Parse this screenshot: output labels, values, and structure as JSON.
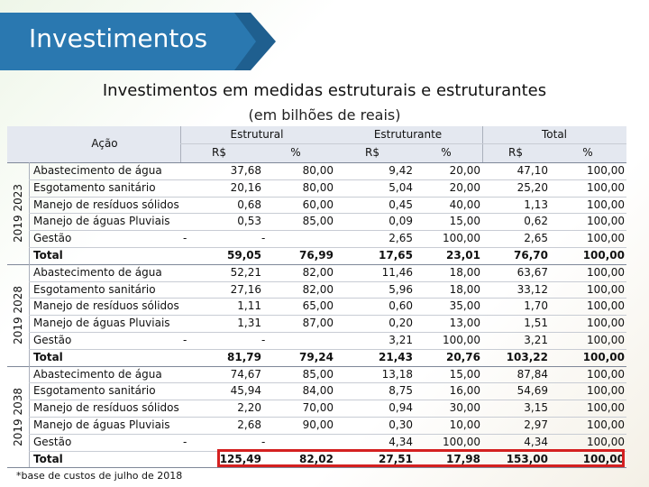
{
  "banner": "Investimentos",
  "heading": "Investimentos em medidas estruturais e estruturantes",
  "subheading": "(em bilhões de reais)",
  "table": {
    "header": {
      "action": "Ação",
      "groups": [
        "Estrutural",
        "Estruturante",
        "Total"
      ],
      "subheaders": [
        "R$",
        "%",
        "R$",
        "%",
        "R$",
        "%"
      ]
    },
    "sections": [
      {
        "label": "2019 2023",
        "rows": [
          [
            "Abastecimento de água",
            "37,68",
            "80,00",
            "9,42",
            "20,00",
            "47,10",
            "100,00"
          ],
          [
            "Esgotamento sanitário",
            "20,16",
            "80,00",
            "5,04",
            "20,00",
            "25,20",
            "100,00"
          ],
          [
            "Manejo de resíduos sólidos",
            "0,68",
            "60,00",
            "0,45",
            "40,00",
            "1,13",
            "100,00"
          ],
          [
            "Manejo de águas Pluviais",
            "0,53",
            "85,00",
            "0,09",
            "15,00",
            "0,62",
            "100,00"
          ],
          [
            "Gestão",
            "-",
            "-",
            "2,65",
            "100,00",
            "2,65",
            "100,00"
          ],
          [
            "Total",
            "59,05",
            "76,99",
            "17,65",
            "23,01",
            "76,70",
            "100,00"
          ]
        ]
      },
      {
        "label": "2019 2028",
        "rows": [
          [
            "Abastecimento de água",
            "52,21",
            "82,00",
            "11,46",
            "18,00",
            "63,67",
            "100,00"
          ],
          [
            "Esgotamento sanitário",
            "27,16",
            "82,00",
            "5,96",
            "18,00",
            "33,12",
            "100,00"
          ],
          [
            "Manejo de resíduos sólidos",
            "1,11",
            "65,00",
            "0,60",
            "35,00",
            "1,70",
            "100,00"
          ],
          [
            "Manejo de águas Pluviais",
            "1,31",
            "87,00",
            "0,20",
            "13,00",
            "1,51",
            "100,00"
          ],
          [
            "Gestão",
            "-",
            "-",
            "3,21",
            "100,00",
            "3,21",
            "100,00"
          ],
          [
            "Total",
            "81,79",
            "79,24",
            "21,43",
            "20,76",
            "103,22",
            "100,00"
          ]
        ]
      },
      {
        "label": "2019 2038",
        "rows": [
          [
            "Abastecimento de água",
            "74,67",
            "85,00",
            "13,18",
            "15,00",
            "87,84",
            "100,00"
          ],
          [
            "Esgotamento sanitário",
            "45,94",
            "84,00",
            "8,75",
            "16,00",
            "54,69",
            "100,00"
          ],
          [
            "Manejo de resíduos sólidos",
            "2,20",
            "70,00",
            "0,94",
            "30,00",
            "3,15",
            "100,00"
          ],
          [
            "Manejo de águas Pluviais",
            "2,68",
            "90,00",
            "0,30",
            "10,00",
            "2,97",
            "100,00"
          ],
          [
            "Gestão",
            "-",
            "-",
            "4,34",
            "100,00",
            "4,34",
            "100,00"
          ],
          [
            "Total",
            "125,49",
            "82,02",
            "27,51",
            "17,98",
            "153,00",
            "100,00"
          ]
        ]
      }
    ]
  },
  "footnote": "*base de custos de julho de 2018"
}
